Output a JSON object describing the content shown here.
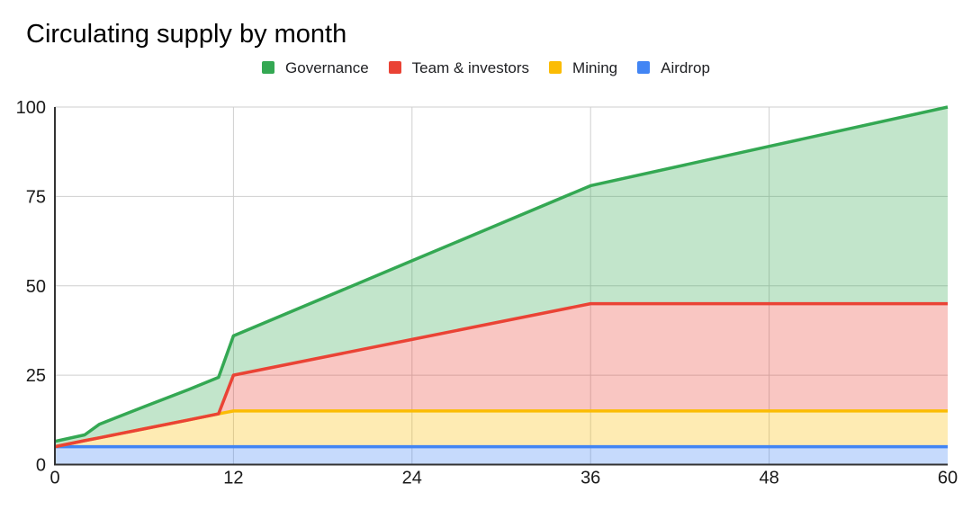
{
  "title": "Circulating supply by month",
  "legend": [
    {
      "label": "Governance",
      "color": "#34a853"
    },
    {
      "label": "Team & investors",
      "color": "#ea4335"
    },
    {
      "label": "Mining",
      "color": "#fbbc04"
    },
    {
      "label": "Airdrop",
      "color": "#4285f4"
    }
  ],
  "chart_data": {
    "type": "area",
    "stacked": true,
    "title": "Circulating supply by month",
    "xlabel": "",
    "ylabel": "",
    "x": [
      0,
      2,
      3,
      6,
      9,
      11,
      12,
      24,
      36,
      48,
      60
    ],
    "series": [
      {
        "name": "Airdrop",
        "color": "#4285f4",
        "values": [
          5,
          5,
          5,
          5,
          5,
          5,
          5,
          5,
          5,
          5,
          5
        ]
      },
      {
        "name": "Mining",
        "color": "#fbbc04",
        "values": [
          0,
          1.7,
          2.5,
          5,
          7.5,
          9.2,
          10,
          10,
          10,
          10,
          10
        ]
      },
      {
        "name": "Team & investors",
        "color": "#ea4335",
        "values": [
          0,
          0,
          0,
          0,
          0,
          0,
          10,
          20,
          30,
          30,
          30
        ]
      },
      {
        "name": "Governance",
        "color": "#34a853",
        "values": [
          1.5,
          1.6,
          3.8,
          6.2,
          8.5,
          10.2,
          11,
          22,
          33,
          44,
          55
        ]
      }
    ],
    "stacked_totals": [
      6.5,
      8.3,
      11.3,
      16.2,
      21,
      24.4,
      36,
      57,
      78,
      89,
      100
    ],
    "x_ticks": [
      0,
      12,
      24,
      36,
      48,
      60
    ],
    "y_ticks": [
      0,
      25,
      50,
      75,
      100
    ],
    "x_tick_labels": [
      "0",
      "12",
      "24",
      "36",
      "48",
      "60"
    ],
    "y_tick_labels": [
      "0",
      "25",
      "50",
      "75",
      "100"
    ],
    "xlim": [
      0,
      60
    ],
    "ylim": [
      0,
      100
    ],
    "grid": true,
    "legend_position": "top",
    "fill_opacity": 0.3,
    "line_width": 3.5,
    "grid_color": "#cfcfcf",
    "axis_color": "#333333"
  }
}
